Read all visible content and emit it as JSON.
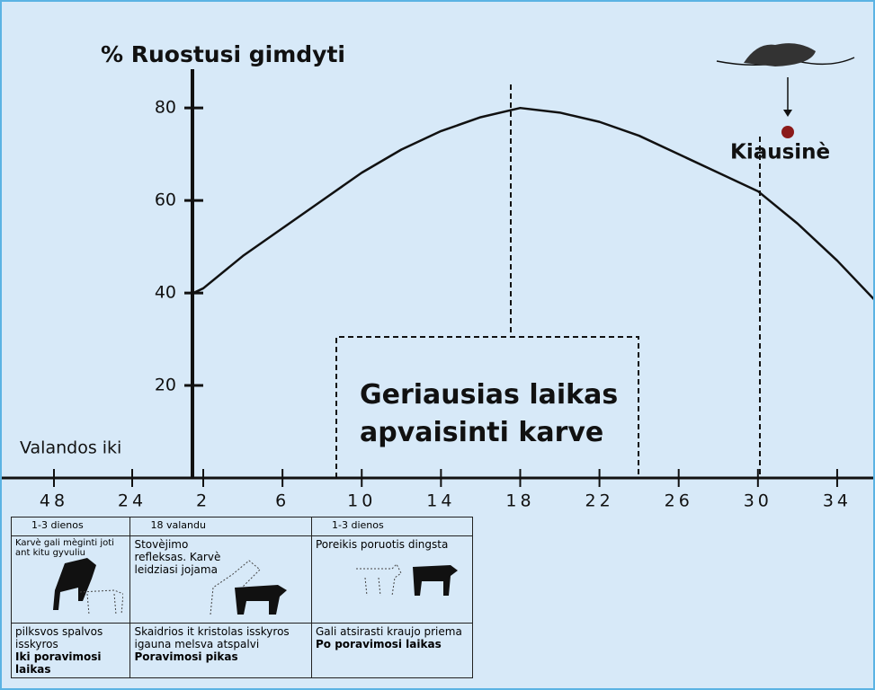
{
  "chart_data": {
    "type": "line",
    "title": "% Ruostusi gimdyti",
    "xlabel": "Valandos iki",
    "xticks_before": [
      48,
      24
    ],
    "x": [
      1.5,
      2,
      4,
      6,
      8,
      10,
      12,
      14,
      16,
      18,
      20,
      22,
      24,
      26,
      28,
      30,
      32,
      34,
      36
    ],
    "series": [
      {
        "color": "#111111",
        "values": [
          40,
          41,
          48,
          54,
          60,
          66,
          71,
          75,
          78,
          80,
          79,
          77,
          74,
          70,
          66,
          62,
          55,
          47,
          38
        ]
      }
    ],
    "xlim": [
      1.5,
      36
    ],
    "xticks": [
      2,
      6,
      10,
      14,
      18,
      22,
      26,
      30,
      34
    ],
    "ylim": [
      0,
      88
    ],
    "yticks": [
      20,
      40,
      60,
      80
    ],
    "annotations": {
      "best_time": "Geriausias laikas apvaisinti karve",
      "egg": "Kiausinè"
    }
  },
  "table": {
    "periods": [
      "1-3 dienos",
      "18 valandu",
      "1-3 dienos"
    ],
    "behaviors": [
      "Karvè gali mèginti joti ant kitu gyvuliu",
      "Stovèjimo refleksas. Karvè leidziasi jojama",
      "Poreikis poruotis dingsta"
    ],
    "signs": [
      "pilksvos spalvos isskyros",
      "Skaidrios it kristolas isskyros igauna melsva atspalvi",
      "Gali atsirasti kraujo priema"
    ],
    "phases": [
      "Iki poravimosi laikas",
      "Poravimosi pikas",
      "Po poravimosi laikas"
    ]
  }
}
